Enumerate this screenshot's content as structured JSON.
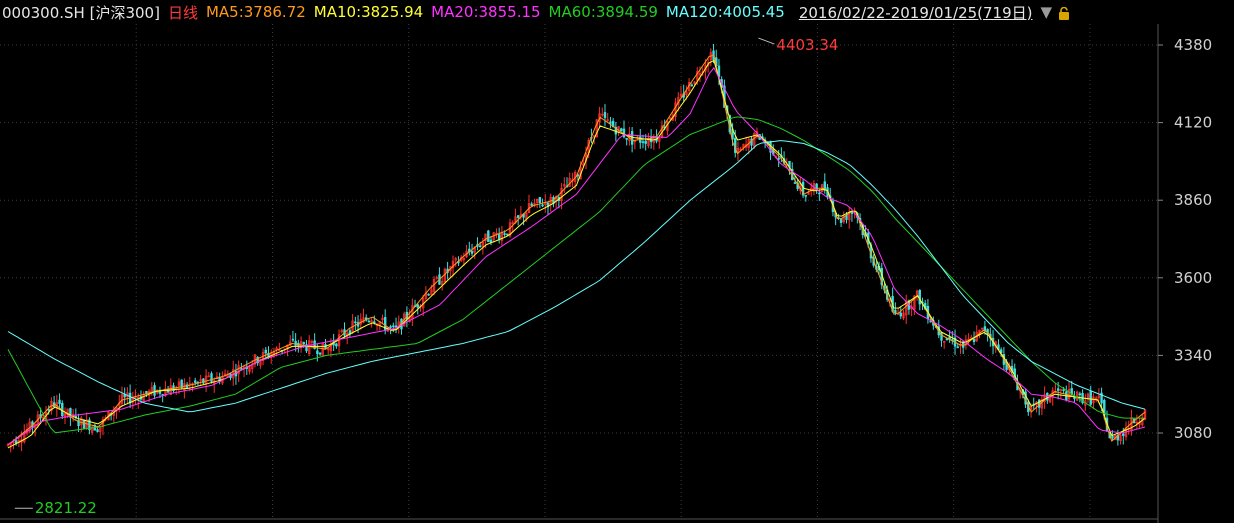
{
  "header": {
    "symbol": "000300.SH [沪深300]",
    "period": "日线",
    "ma5": "MA5:3786.72",
    "ma10": "MA10:3825.94",
    "ma20": "MA20:3855.15",
    "ma60": "MA60:3894.59",
    "ma120": "MA120:4005.45",
    "range": "2016/02/22-2019/01/25(719日)",
    "dropdown_icon": "triangle-down-icon",
    "lock_icon": "lock-icon"
  },
  "chart_data": {
    "type": "candlestick",
    "ylim": [
      2760,
      4440
    ],
    "y_ticks": [
      4380,
      4120,
      3860,
      3600,
      3340,
      3080
    ],
    "y_tick_labels": [
      "4380",
      "4120",
      "3860",
      "3600",
      "3340",
      "3080"
    ],
    "high_annotation": "4403.34",
    "low_annotation": "2821.22",
    "high_value": 4403.34,
    "low_value": 2821.22,
    "bar_count": 719,
    "colors": {
      "up": "#ff2d2d",
      "down": "#3be0e0",
      "ma5": "#ff9a1f",
      "ma10": "#ffff33",
      "ma20": "#ff33ff",
      "ma60": "#22cc22",
      "ma120": "#66ffff",
      "grid": "#3a3a3a"
    },
    "series": [
      {
        "name": "MA5",
        "x": [
          0,
          0.02,
          0.04,
          0.06,
          0.08,
          0.1,
          0.13,
          0.16,
          0.19,
          0.22,
          0.25,
          0.28,
          0.3,
          0.32,
          0.34,
          0.37,
          0.4,
          0.42,
          0.44,
          0.46,
          0.48,
          0.5,
          0.52,
          0.55,
          0.57,
          0.6,
          0.62,
          0.64,
          0.66,
          0.68,
          0.7,
          0.71,
          0.72,
          0.73,
          0.745,
          0.76,
          0.78,
          0.8,
          0.82,
          0.84,
          0.86,
          0.88,
          0.9,
          0.92,
          0.94,
          0.96,
          0.97,
          0.99,
          1.0
        ],
        "values": [
          3040,
          3100,
          3180,
          3120,
          3100,
          3190,
          3220,
          3240,
          3270,
          3330,
          3380,
          3360,
          3430,
          3470,
          3420,
          3560,
          3670,
          3730,
          3760,
          3840,
          3860,
          3940,
          4140,
          4060,
          4070,
          4250,
          4360,
          4010,
          4080,
          4000,
          3880,
          3900,
          3900,
          3790,
          3830,
          3670,
          3470,
          3540,
          3410,
          3370,
          3430,
          3300,
          3150,
          3220,
          3200,
          3190,
          3050,
          3120,
          3150
        ]
      },
      {
        "name": "MA10",
        "x": [
          0,
          0.02,
          0.04,
          0.06,
          0.08,
          0.1,
          0.13,
          0.16,
          0.19,
          0.22,
          0.25,
          0.28,
          0.3,
          0.32,
          0.34,
          0.37,
          0.4,
          0.42,
          0.44,
          0.46,
          0.48,
          0.5,
          0.52,
          0.55,
          0.57,
          0.6,
          0.62,
          0.64,
          0.66,
          0.68,
          0.7,
          0.71,
          0.72,
          0.73,
          0.745,
          0.76,
          0.78,
          0.8,
          0.82,
          0.84,
          0.86,
          0.88,
          0.9,
          0.92,
          0.94,
          0.96,
          0.97,
          0.99,
          1.0
        ],
        "values": [
          3030,
          3070,
          3170,
          3130,
          3110,
          3170,
          3220,
          3230,
          3260,
          3320,
          3370,
          3370,
          3410,
          3450,
          3420,
          3530,
          3640,
          3710,
          3740,
          3810,
          3850,
          3910,
          4110,
          4070,
          4060,
          4220,
          4340,
          4060,
          4080,
          4010,
          3900,
          3890,
          3900,
          3800,
          3830,
          3700,
          3490,
          3540,
          3420,
          3380,
          3420,
          3310,
          3170,
          3210,
          3200,
          3190,
          3070,
          3100,
          3130
        ]
      },
      {
        "name": "MA20",
        "x": [
          0,
          0.03,
          0.06,
          0.1,
          0.14,
          0.18,
          0.22,
          0.26,
          0.3,
          0.34,
          0.38,
          0.42,
          0.46,
          0.5,
          0.54,
          0.58,
          0.6,
          0.62,
          0.64,
          0.66,
          0.68,
          0.7,
          0.72,
          0.74,
          0.76,
          0.78,
          0.8,
          0.82,
          0.84,
          0.86,
          0.88,
          0.9,
          0.92,
          0.94,
          0.96,
          0.98,
          1.0
        ],
        "values": [
          3040,
          3120,
          3140,
          3160,
          3210,
          3240,
          3320,
          3370,
          3400,
          3430,
          3510,
          3670,
          3770,
          3880,
          4080,
          4070,
          4150,
          4310,
          4160,
          4080,
          3980,
          3930,
          3870,
          3840,
          3740,
          3560,
          3480,
          3440,
          3390,
          3330,
          3280,
          3210,
          3200,
          3180,
          3090,
          3080,
          3100
        ]
      },
      {
        "name": "MA60",
        "x": [
          0,
          0.04,
          0.08,
          0.12,
          0.16,
          0.2,
          0.24,
          0.28,
          0.32,
          0.36,
          0.4,
          0.44,
          0.48,
          0.52,
          0.56,
          0.6,
          0.64,
          0.66,
          0.68,
          0.7,
          0.72,
          0.74,
          0.76,
          0.78,
          0.8,
          0.82,
          0.84,
          0.86,
          0.88,
          0.9,
          0.92,
          0.94,
          0.96,
          0.98,
          1.0
        ],
        "values": [
          3360,
          3080,
          3100,
          3140,
          3170,
          3210,
          3300,
          3340,
          3360,
          3380,
          3460,
          3580,
          3700,
          3820,
          3980,
          4080,
          4140,
          4130,
          4100,
          4060,
          4010,
          3960,
          3890,
          3800,
          3720,
          3640,
          3560,
          3480,
          3400,
          3320,
          3250,
          3200,
          3150,
          3130,
          3130
        ]
      },
      {
        "name": "MA120",
        "x": [
          0,
          0.04,
          0.08,
          0.12,
          0.16,
          0.2,
          0.24,
          0.28,
          0.32,
          0.36,
          0.4,
          0.44,
          0.48,
          0.52,
          0.56,
          0.6,
          0.64,
          0.66,
          0.68,
          0.7,
          0.72,
          0.74,
          0.76,
          0.78,
          0.8,
          0.82,
          0.84,
          0.86,
          0.88,
          0.9,
          0.92,
          0.94,
          0.96,
          0.98,
          1.0
        ],
        "values": [
          3420,
          3330,
          3250,
          3180,
          3150,
          3180,
          3230,
          3280,
          3320,
          3350,
          3380,
          3420,
          3500,
          3590,
          3720,
          3860,
          3980,
          4050,
          4060,
          4050,
          4020,
          3980,
          3910,
          3830,
          3740,
          3640,
          3540,
          3460,
          3380,
          3320,
          3280,
          3240,
          3210,
          3180,
          3160
        ]
      }
    ]
  }
}
